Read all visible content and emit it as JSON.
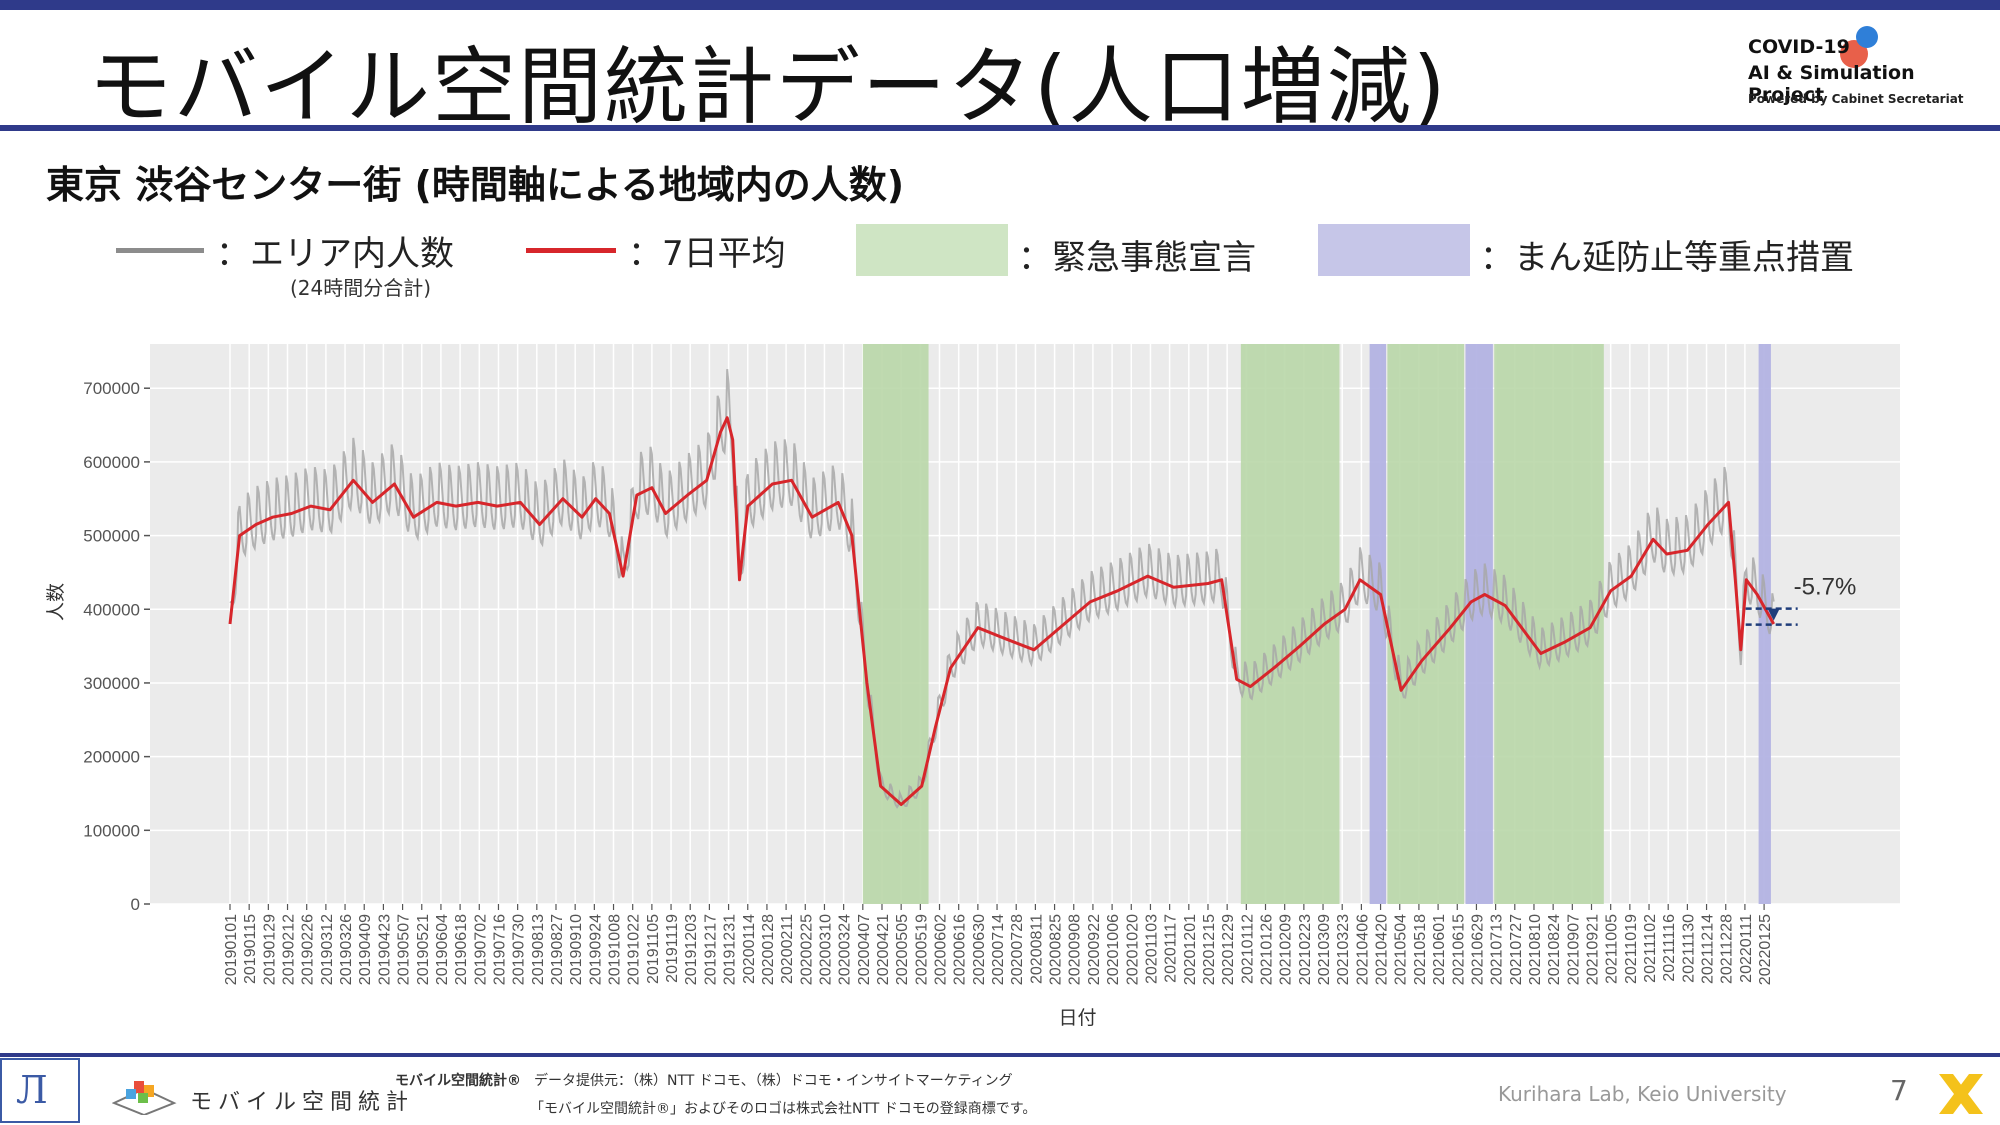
{
  "header": {
    "title": "モバイル空間統計データ(人口増減)",
    "logo": {
      "line1": "COVID-19",
      "line2": "AI & Simulation Project",
      "line3": "Powered by Cabinet Secretariat"
    }
  },
  "subtitle": "東京 渋谷センター街 (時間軸による地域内の人数)",
  "legend": {
    "gray_label": "：エリア内人数",
    "gray_note": "(24時間分合計)",
    "red_label": "：7日平均",
    "green_label": "：緊急事態宣言",
    "purple_label": "：まん延防止等重点措置"
  },
  "colors": {
    "accent_bar": "#2f3a8a",
    "raw_line": "#a8a8a8",
    "avg_line": "#d7262b",
    "emergency": "#b9d7a8",
    "priority": "#b3b3e3",
    "plot_bg": "#ebebeb"
  },
  "chart_data": {
    "type": "line",
    "ylabel": "人数",
    "xlabel": "日付",
    "ylim": [
      0,
      760000
    ],
    "y_ticks": [
      0,
      100000,
      200000,
      300000,
      400000,
      500000,
      600000,
      700000
    ],
    "y_tick_labels": [
      "0",
      "100000",
      "200000",
      "300000",
      "400000",
      "500000",
      "600000",
      "700000"
    ],
    "x_start": "20190101",
    "x_end": "20220210",
    "x_tick_labels": [
      "20190101",
      "20190115",
      "20190129",
      "20190212",
      "20190226",
      "20190312",
      "20190326",
      "20190409",
      "20190423",
      "20190507",
      "20190521",
      "20190604",
      "20190618",
      "20190702",
      "20190716",
      "20190730",
      "20190813",
      "20190827",
      "20190910",
      "20190924",
      "20191008",
      "20191022",
      "20191105",
      "20191119",
      "20191203",
      "20191217",
      "20191231",
      "20200114",
      "20200128",
      "20200211",
      "20200225",
      "20200310",
      "20200324",
      "20200407",
      "20200421",
      "20200505",
      "20200519",
      "20200602",
      "20200616",
      "20200630",
      "20200714",
      "20200728",
      "20200811",
      "20200825",
      "20200908",
      "20200922",
      "20201006",
      "20201020",
      "20201103",
      "20201117",
      "20201201",
      "20201215",
      "20201229",
      "20210112",
      "20210126",
      "20210209",
      "20210223",
      "20210309",
      "20210323",
      "20210406",
      "20210420",
      "20210504",
      "20210518",
      "20210601",
      "20210615",
      "20210629",
      "20210713",
      "20210727",
      "20210810",
      "20210824",
      "20210907",
      "20210921",
      "20211005",
      "20211019",
      "20211102",
      "20211116",
      "20211130",
      "20211214",
      "20211228",
      "20220111",
      "20220125"
    ],
    "emergency_periods": [
      [
        "20200407",
        "20200525"
      ],
      [
        "20210108",
        "20210321"
      ],
      [
        "20210425",
        "20210620"
      ],
      [
        "20210712",
        "20210930"
      ]
    ],
    "priority_periods": [
      [
        "20210412",
        "20210424"
      ],
      [
        "20210621",
        "20210711"
      ],
      [
        "20220121",
        "20220130"
      ]
    ],
    "series": [
      {
        "name": "7日平均",
        "points": [
          [
            "20190101",
            380000
          ],
          [
            "20190108",
            500000
          ],
          [
            "20190120",
            515000
          ],
          [
            "20190201",
            525000
          ],
          [
            "20190215",
            530000
          ],
          [
            "20190301",
            540000
          ],
          [
            "20190315",
            535000
          ],
          [
            "20190401",
            575000
          ],
          [
            "20190415",
            545000
          ],
          [
            "20190501",
            570000
          ],
          [
            "20190515",
            525000
          ],
          [
            "20190601",
            545000
          ],
          [
            "20190615",
            540000
          ],
          [
            "20190701",
            545000
          ],
          [
            "20190715",
            540000
          ],
          [
            "20190801",
            545000
          ],
          [
            "20190815",
            515000
          ],
          [
            "20190901",
            550000
          ],
          [
            "20190915",
            525000
          ],
          [
            "20190925",
            550000
          ],
          [
            "20191005",
            530000
          ],
          [
            "20191015",
            445000
          ],
          [
            "20191025",
            555000
          ],
          [
            "20191105",
            565000
          ],
          [
            "20191115",
            530000
          ],
          [
            "20191201",
            555000
          ],
          [
            "20191215",
            575000
          ],
          [
            "20191225",
            640000
          ],
          [
            "20191230",
            660000
          ],
          [
            "20200103",
            630000
          ],
          [
            "20200108",
            440000
          ],
          [
            "20200114",
            540000
          ],
          [
            "20200201",
            570000
          ],
          [
            "20200215",
            575000
          ],
          [
            "20200301",
            525000
          ],
          [
            "20200320",
            545000
          ],
          [
            "20200330",
            500000
          ],
          [
            "20200410",
            300000
          ],
          [
            "20200420",
            160000
          ],
          [
            "20200505",
            135000
          ],
          [
            "20200520",
            160000
          ],
          [
            "20200530",
            240000
          ],
          [
            "20200610",
            320000
          ],
          [
            "20200630",
            375000
          ],
          [
            "20200720",
            360000
          ],
          [
            "20200810",
            345000
          ],
          [
            "20200901",
            380000
          ],
          [
            "20200920",
            410000
          ],
          [
            "20201010",
            425000
          ],
          [
            "20201101",
            445000
          ],
          [
            "20201120",
            430000
          ],
          [
            "20201215",
            435000
          ],
          [
            "20201225",
            440000
          ],
          [
            "20210105",
            305000
          ],
          [
            "20210115",
            295000
          ],
          [
            "20210201",
            320000
          ],
          [
            "20210220",
            350000
          ],
          [
            "20210310",
            380000
          ],
          [
            "20210325",
            400000
          ],
          [
            "20210405",
            440000
          ],
          [
            "20210420",
            420000
          ],
          [
            "20210505",
            290000
          ],
          [
            "20210520",
            330000
          ],
          [
            "20210610",
            375000
          ],
          [
            "20210625",
            410000
          ],
          [
            "20210705",
            420000
          ],
          [
            "20210720",
            405000
          ],
          [
            "20210801",
            375000
          ],
          [
            "20210815",
            340000
          ],
          [
            "20210901",
            355000
          ],
          [
            "20210920",
            375000
          ],
          [
            "20211005",
            425000
          ],
          [
            "20211020",
            445000
          ],
          [
            "20211105",
            495000
          ],
          [
            "20211115",
            475000
          ],
          [
            "20211130",
            480000
          ],
          [
            "20211215",
            515000
          ],
          [
            "20211230",
            545000
          ],
          [
            "20220104",
            440000
          ],
          [
            "20220108",
            345000
          ],
          [
            "20220112",
            440000
          ],
          [
            "20220120",
            420000
          ],
          [
            "20220201",
            380000
          ]
        ]
      },
      {
        "name": "エリア内人数"
      }
    ],
    "annotation": {
      "label": "-5.7%",
      "date": "20220201",
      "value": 390000
    }
  },
  "footer": {
    "mobile_logo_text": "モバイル空間統計",
    "mobile_reg": "モバイル空間統計®",
    "provider": "データ提供元：（株）NTT ドコモ、（株）ドコモ・インサイトマーケティング",
    "trademark": "「モバイル空間統計®」およびそのロゴは株式会社NTT ドコモの登録商標です。",
    "lab": "Kurihara Lab, Keio University",
    "page_number": "7"
  }
}
